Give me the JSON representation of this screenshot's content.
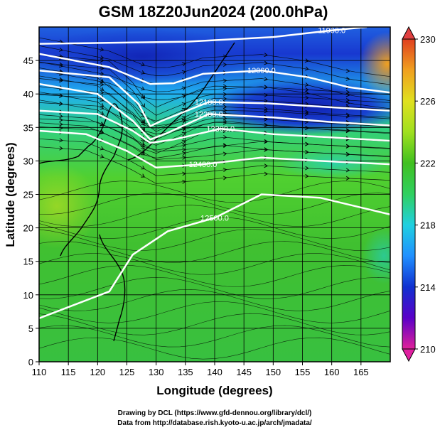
{
  "chart_data": {
    "type": "heatmap",
    "title": "GSM 18Z20Jun2024 (200.0hPa)",
    "xlabel": "Longitude (degrees)",
    "ylabel": "Latitude  (degrees)",
    "xlim": [
      110,
      170
    ],
    "ylim": [
      0,
      50
    ],
    "x_ticks": [
      110,
      115,
      120,
      125,
      130,
      135,
      140,
      145,
      150,
      155,
      160,
      165
    ],
    "y_ticks": [
      0,
      5,
      10,
      15,
      20,
      25,
      30,
      35,
      40,
      45
    ],
    "colorbar": {
      "ticks": [
        210,
        214,
        218,
        222,
        226,
        230
      ],
      "min": 210,
      "max": 230,
      "colors": [
        "#e0209a",
        "#5a00c8",
        "#1030d0",
        "#2090ff",
        "#20d0e0",
        "#30d060",
        "#40c020",
        "#a0e020",
        "#e0e020",
        "#f0a020",
        "#e04020"
      ]
    },
    "grid": true,
    "contours": [
      {
        "label": "11900.0",
        "lat": [
          47.5,
          47.8,
          48.5,
          49.5,
          50
        ],
        "lon": [
          110,
          135,
          150,
          160,
          166
        ]
      },
      {
        "label": "12000.0",
        "lat": [
          46.0,
          44.0,
          41.5,
          41.6,
          43.0,
          43.5,
          42.5,
          41.0,
          40.2
        ],
        "lon": [
          110,
          122,
          129,
          133,
          138,
          148,
          156,
          163,
          170
        ]
      },
      {
        "label": "12100.0",
        "lat": [
          43.5,
          42.5,
          38.5,
          35.2,
          36.0,
          38.8,
          38.6,
          38.0,
          37.5
        ],
        "lon": [
          110,
          122,
          127,
          129,
          131,
          139,
          149,
          160,
          170
        ]
      },
      {
        "label": "12200.0",
        "lat": [
          41.5,
          40.0,
          36.0,
          33.2,
          34.2,
          37.0,
          36.5,
          35.8,
          35.3
        ],
        "lon": [
          110,
          120,
          126,
          129,
          132,
          139,
          150,
          160,
          170
        ]
      },
      {
        "label": "12300.0",
        "lat": [
          37.5,
          37.0,
          34.5,
          32.7,
          33.2,
          34.8,
          34.0,
          33.5,
          33.0
        ],
        "lon": [
          110,
          120,
          126,
          129,
          133,
          141,
          150,
          160,
          170
        ]
      },
      {
        "label": "12400.0",
        "lat": [
          34.5,
          34.0,
          31.5,
          29.0,
          29.5,
          30.5,
          30.0,
          29.5
        ],
        "lon": [
          110,
          118,
          125,
          130,
          138,
          148,
          158,
          170
        ]
      },
      {
        "label": "12500.0",
        "lat": [
          6.5,
          8.5,
          10.5,
          16.0,
          19.5,
          21.5,
          25.0,
          24.5,
          22.0
        ],
        "lon": [
          110,
          116,
          122,
          126,
          132,
          140,
          148,
          158,
          170
        ]
      }
    ],
    "annotations": [
      "12000.0",
      "11900.0",
      "12100.0",
      "12200.0",
      "12300.0",
      "12400.0",
      "12500.0",
      "12500.0"
    ],
    "footer": [
      "Drawing by DCL (https://www.gfd-dennou.org/library/dcl/)",
      "Data from http://database.rish.kyoto-u.ac.jp/arch/jmadata/"
    ]
  }
}
